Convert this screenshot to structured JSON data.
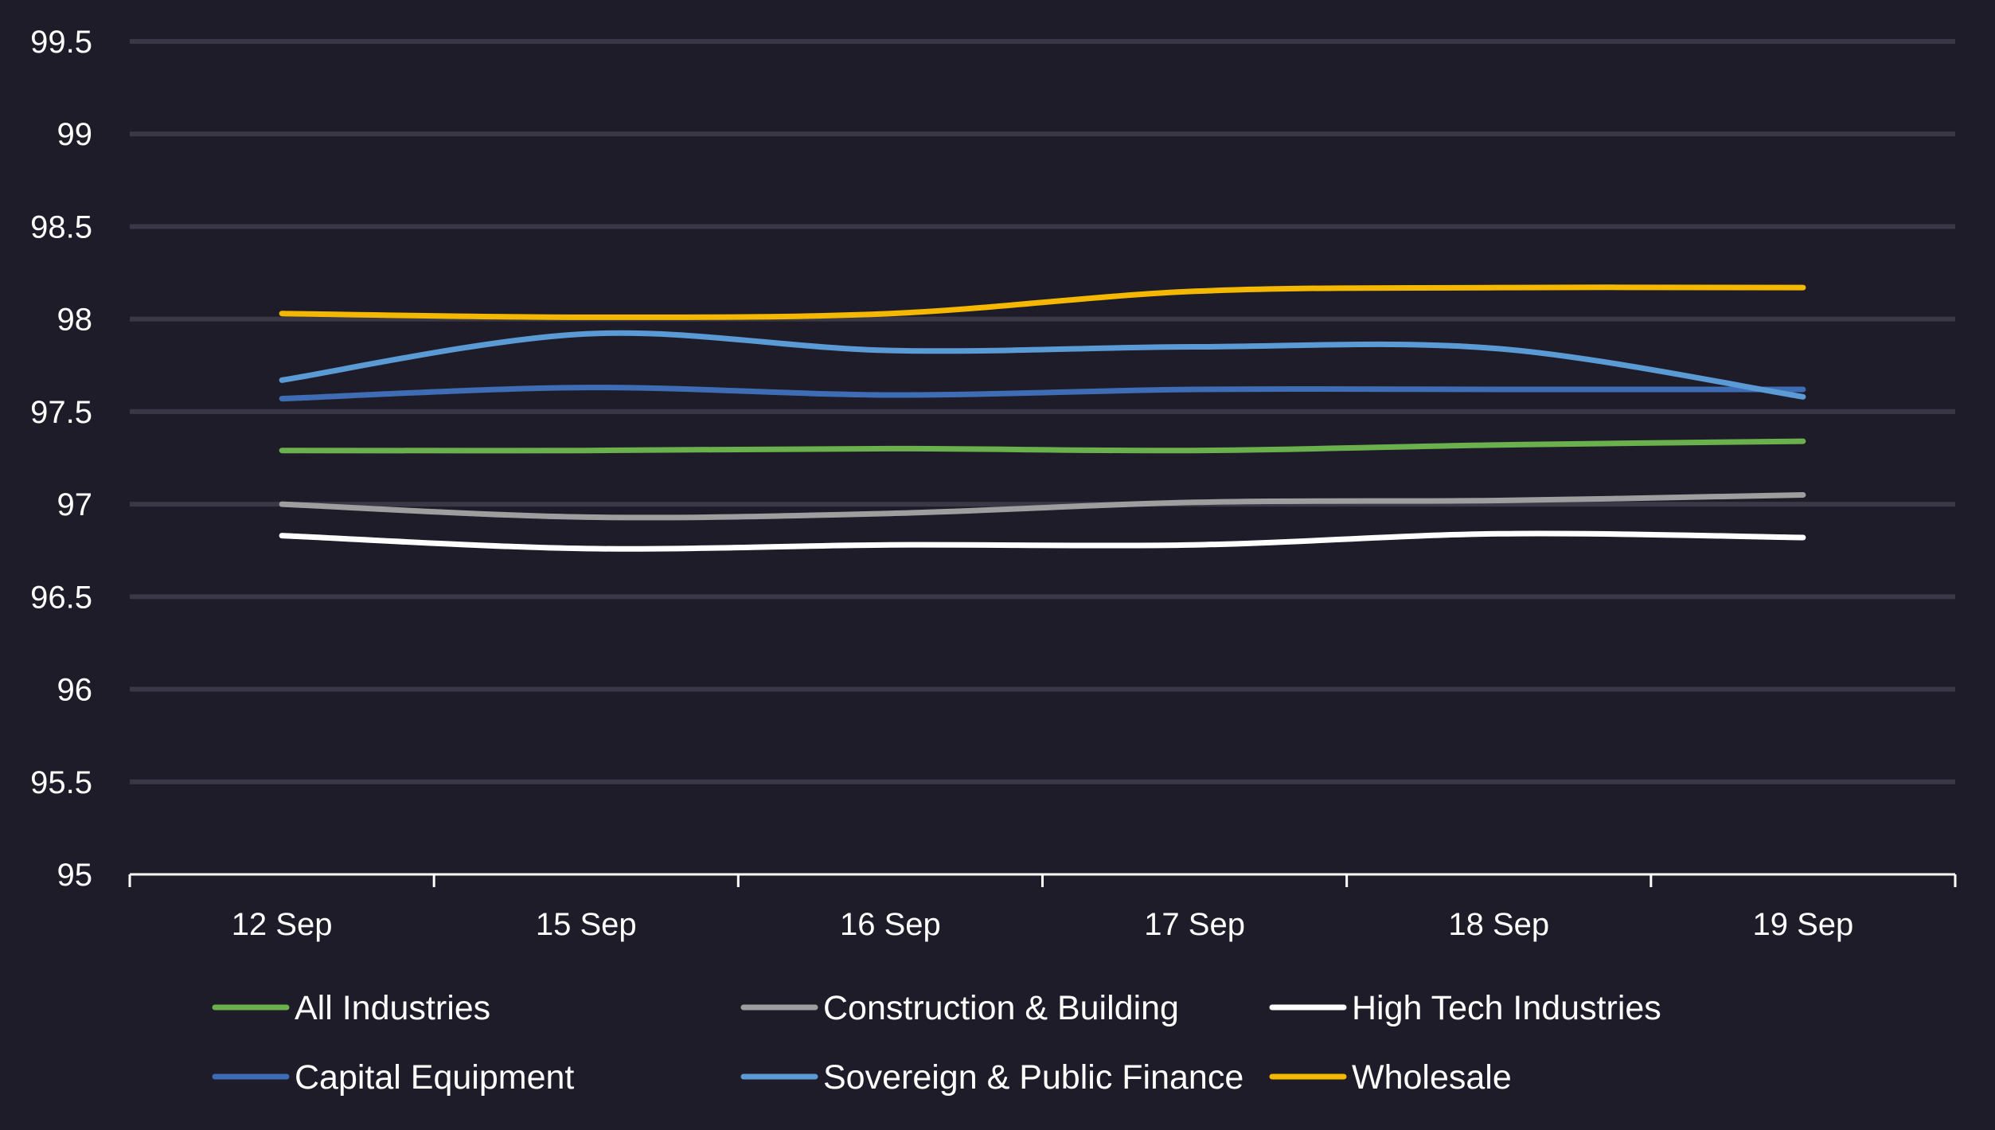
{
  "chart_data": {
    "type": "line",
    "title": "",
    "xlabel": "",
    "ylabel": "",
    "categories": [
      "12 Sep",
      "15 Sep",
      "16 Sep",
      "17 Sep",
      "18 Sep",
      "19 Sep"
    ],
    "ylim": [
      95,
      99.5
    ],
    "yticks": [
      "95",
      "95.5",
      "96",
      "96.5",
      "97",
      "97.5",
      "98",
      "98.5",
      "99",
      "99.5"
    ],
    "grid": true,
    "legend_position": "bottom",
    "series": [
      {
        "name": "All Industries",
        "color": "#6ab04c",
        "values": [
          97.29,
          97.29,
          97.3,
          97.29,
          97.32,
          97.34
        ]
      },
      {
        "name": "Construction & Building",
        "color": "#9e9e9e",
        "values": [
          97.0,
          96.93,
          96.95,
          97.01,
          97.02,
          97.05
        ]
      },
      {
        "name": "High Tech Industries",
        "color": "#ffffff",
        "values": [
          96.83,
          96.76,
          96.78,
          96.78,
          96.84,
          96.82
        ]
      },
      {
        "name": "Capital Equipment",
        "color": "#3f6db5",
        "values": [
          97.57,
          97.63,
          97.59,
          97.62,
          97.62,
          97.62
        ]
      },
      {
        "name": "Sovereign & Public Finance",
        "color": "#5b9bd5",
        "values": [
          97.67,
          97.92,
          97.83,
          97.85,
          97.84,
          97.58
        ]
      },
      {
        "name": "Wholesale",
        "color": "#f5b800",
        "values": [
          98.03,
          98.01,
          98.03,
          98.15,
          98.17,
          98.17
        ]
      }
    ]
  }
}
